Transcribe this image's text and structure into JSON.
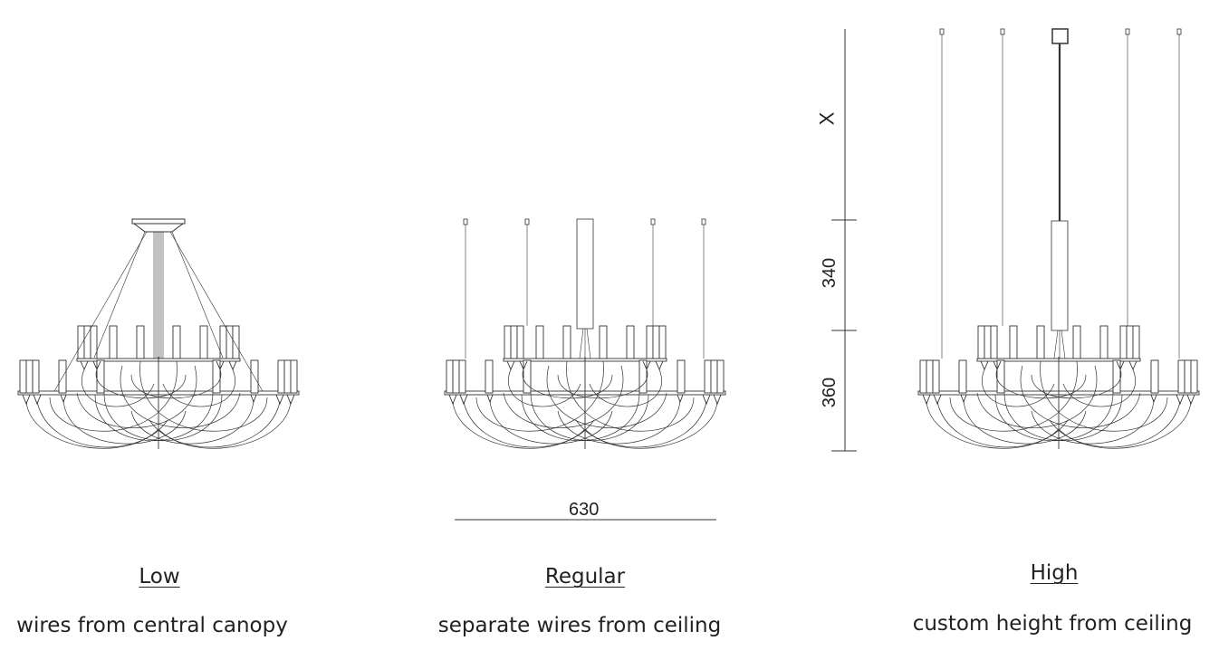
{
  "variants": [
    {
      "id": "low",
      "title": "Low",
      "description": "wires from central canopy"
    },
    {
      "id": "regular",
      "title": "Regular",
      "description": "separate wires from ceiling"
    },
    {
      "id": "high",
      "title": "High",
      "description": "custom height from ceiling"
    }
  ],
  "dimensions": {
    "width": "630",
    "custom_height": "X",
    "rod_height": "340",
    "body_height": "360"
  }
}
